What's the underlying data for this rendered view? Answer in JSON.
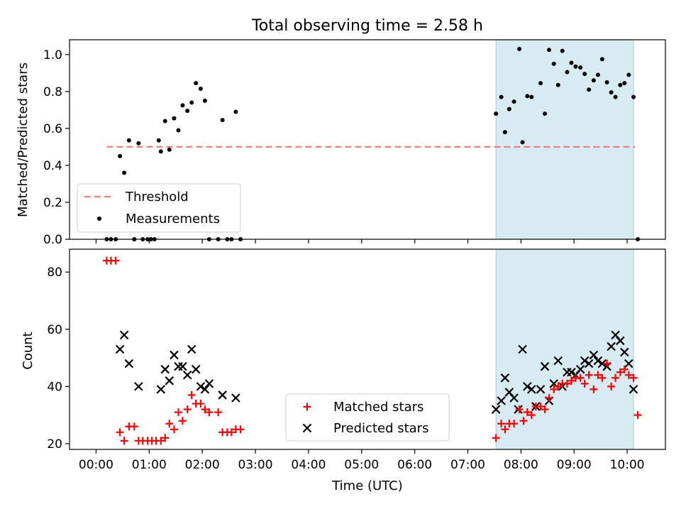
{
  "chart_data": [
    {
      "type": "scatter",
      "title": "Total observing time = 2.58 h",
      "xlabel": "",
      "ylabel": "Matched/Predicted stars",
      "xlim_hours": [
        -0.5,
        10.72
      ],
      "ylim": [
        0,
        1.08
      ],
      "yticks": [
        "0.0",
        "0.2",
        "0.4",
        "0.6",
        "0.8",
        "1.0"
      ],
      "grid": false,
      "legend_position": "lower-left",
      "highlight_span_hours": [
        7.53,
        10.12
      ],
      "highlight_color": "#add8e6",
      "threshold": {
        "name": "Threshold",
        "value": 0.5,
        "x_range_hours": [
          0.2,
          10.15
        ],
        "color": "#f08080"
      },
      "series": [
        {
          "name": "Measurements",
          "color": "#000000",
          "x_hours": [
            0.2,
            0.28,
            0.37,
            0.45,
            0.53,
            0.62,
            0.72,
            0.8,
            0.88,
            0.97,
            1.03,
            1.1,
            1.18,
            1.22,
            1.3,
            1.38,
            1.47,
            1.55,
            1.63,
            1.72,
            1.8,
            1.88,
            1.97,
            2.05,
            2.13,
            2.3,
            2.38,
            2.47,
            2.55,
            2.63,
            2.72,
            7.53,
            7.63,
            7.7,
            7.78,
            7.87,
            7.97,
            8.03,
            8.12,
            8.2,
            8.37,
            8.45,
            8.53,
            8.62,
            8.7,
            8.78,
            8.87,
            8.95,
            9.03,
            9.12,
            9.2,
            9.28,
            9.37,
            9.45,
            9.53,
            9.62,
            9.7,
            9.78,
            9.87,
            9.95,
            10.03,
            10.12,
            10.2
          ],
          "y": [
            0.0,
            0.0,
            0.0,
            0.45,
            0.36,
            0.535,
            0.0,
            0.52,
            0.0,
            0.0,
            0.0,
            0.0,
            0.535,
            0.475,
            0.64,
            0.485,
            0.655,
            0.59,
            0.725,
            0.695,
            0.74,
            0.845,
            0.815,
            0.75,
            0.0,
            0.0,
            0.645,
            0.0,
            0.0,
            0.69,
            0.0,
            0.68,
            0.77,
            0.58,
            0.705,
            0.745,
            1.03,
            0.525,
            0.775,
            0.77,
            0.845,
            0.68,
            1.025,
            0.95,
            0.835,
            1.02,
            0.905,
            0.955,
            0.935,
            0.93,
            0.895,
            0.81,
            0.86,
            0.89,
            0.975,
            0.85,
            0.795,
            0.77,
            0.835,
            0.845,
            0.89,
            0.77,
            0.0
          ]
        }
      ]
    },
    {
      "type": "scatter",
      "title": "",
      "xlabel": "Time (UTC)",
      "ylabel": "Count",
      "xlim_hours": [
        -0.5,
        10.72
      ],
      "ylim": [
        18,
        88
      ],
      "yticks": [
        "20",
        "40",
        "60",
        "80"
      ],
      "xticks": [
        "00:00",
        "01:00",
        "02:00",
        "03:00",
        "04:00",
        "05:00",
        "06:00",
        "07:00",
        "08:00",
        "09:00",
        "10:00"
      ],
      "grid": false,
      "legend_position": "lower-center",
      "highlight_span_hours": [
        7.53,
        10.12
      ],
      "highlight_color": "#add8e6",
      "series": [
        {
          "name": "Matched stars",
          "marker": "plus",
          "color": "#ff0000",
          "x_hours": [
            0.2,
            0.28,
            0.37,
            0.45,
            0.53,
            0.62,
            0.72,
            0.8,
            0.88,
            0.97,
            1.05,
            1.13,
            1.22,
            1.3,
            1.38,
            1.47,
            1.55,
            1.63,
            1.72,
            1.8,
            1.88,
            1.97,
            2.05,
            2.13,
            2.3,
            2.38,
            2.47,
            2.55,
            2.63,
            2.72,
            7.53,
            7.63,
            7.7,
            7.78,
            7.87,
            7.97,
            8.05,
            8.12,
            8.2,
            8.28,
            8.37,
            8.45,
            8.53,
            8.62,
            8.7,
            8.78,
            8.87,
            8.95,
            9.03,
            9.12,
            9.2,
            9.28,
            9.37,
            9.45,
            9.53,
            9.62,
            9.7,
            9.78,
            9.87,
            9.95,
            10.03,
            10.12,
            10.2
          ],
          "y": [
            84,
            84,
            84,
            24,
            21,
            26,
            26,
            21,
            21,
            21,
            21,
            21,
            21,
            22,
            27,
            25,
            31,
            28,
            32,
            37,
            34,
            34,
            32,
            31,
            31,
            24,
            24,
            24,
            25,
            25,
            22,
            27,
            25,
            27,
            27,
            32,
            28,
            31,
            30,
            33,
            33,
            32,
            36,
            39,
            40,
            41,
            41,
            42,
            43,
            43,
            41,
            44,
            39,
            44,
            43,
            48,
            40,
            43,
            45,
            46,
            44,
            43,
            30
          ]
        },
        {
          "name": "Predicted stars",
          "marker": "x",
          "color": "#000000",
          "x_hours": [
            0.45,
            0.53,
            0.62,
            0.8,
            1.22,
            1.3,
            1.38,
            1.47,
            1.55,
            1.63,
            1.72,
            1.8,
            1.88,
            1.97,
            2.05,
            2.13,
            2.38,
            2.63,
            7.53,
            7.63,
            7.7,
            7.78,
            7.87,
            7.95,
            8.03,
            8.12,
            8.2,
            8.28,
            8.37,
            8.45,
            8.53,
            8.62,
            8.7,
            8.78,
            8.87,
            8.95,
            9.03,
            9.12,
            9.2,
            9.28,
            9.37,
            9.45,
            9.53,
            9.62,
            9.7,
            9.78,
            9.87,
            9.95,
            10.03,
            10.12
          ],
          "y": [
            53,
            58,
            48,
            40,
            39,
            46,
            42,
            51,
            47,
            47,
            44,
            53,
            46,
            40,
            39,
            41,
            37,
            36,
            32,
            35,
            43,
            38,
            36,
            32,
            53,
            40,
            39,
            33,
            39,
            47,
            35,
            41,
            49,
            40,
            45,
            45,
            44,
            46,
            49,
            48,
            51,
            49,
            48,
            47,
            54,
            58,
            56,
            52,
            48,
            39
          ]
        }
      ]
    }
  ]
}
